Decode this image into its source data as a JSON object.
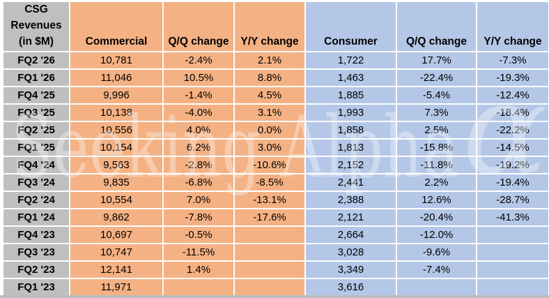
{
  "colors": {
    "label_gray": "#BFBFBF",
    "commercial_orange": "#F4B183",
    "consumer_blue": "#B4C7E7",
    "gridline_white": "#FFFFFF",
    "text_black": "#000000",
    "watermark_white": "#FFFFFF"
  },
  "watermark": {
    "text": "Seeking Alpha",
    "alpha_glyph": "α"
  },
  "table": {
    "corner": {
      "line1": "CSG",
      "line2": "Revenues",
      "line3": "(in $M)"
    },
    "headers": {
      "commercial": "Commercial",
      "commercial_qq": "Q/Q change",
      "commercial_yy": "Y/Y change",
      "consumer": "Consumer",
      "consumer_qq": "Q/Q change",
      "consumer_yy": "Y/Y change"
    },
    "rows": [
      {
        "label": "FQ2 '26",
        "cells": [
          "10,781",
          "-2.4%",
          "2.1%",
          "1,722",
          "17.7%",
          "-7.3%"
        ]
      },
      {
        "label": "FQ1 '26",
        "cells": [
          "11,046",
          "10.5%",
          "8.8%",
          "1,463",
          "-22.4%",
          "-19.3%"
        ]
      },
      {
        "label": "FQ4 '25",
        "cells": [
          "9,996",
          "-1.4%",
          "4.5%",
          "1,885",
          "-5.4%",
          "-12.4%"
        ]
      },
      {
        "label": "FQ3 '25",
        "cells": [
          "10,138",
          "-4.0%",
          "3.1%",
          "1,993",
          "7.3%",
          "-18.4%"
        ]
      },
      {
        "label": "FQ2 '25",
        "cells": [
          "10,556",
          "4.0%",
          "0.0%",
          "1,858",
          "2.5%",
          "-22.2%"
        ]
      },
      {
        "label": "FQ1 '25",
        "cells": [
          "10,154",
          "6.2%",
          "3.0%",
          "1,813",
          "-15.8%",
          "-14.5%"
        ]
      },
      {
        "label": "FQ4 '24",
        "cells": [
          "9,563",
          "-2.8%",
          "-10.6%",
          "2,152",
          "-11.8%",
          "-19.2%"
        ]
      },
      {
        "label": "FQ3 '24",
        "cells": [
          "9,835",
          "-6.8%",
          "-8.5%",
          "2,441",
          "2.2%",
          "-19.4%"
        ]
      },
      {
        "label": "FQ2 '24",
        "cells": [
          "10,554",
          "7.0%",
          "-13.1%",
          "2,388",
          "12.6%",
          "-28.7%"
        ]
      },
      {
        "label": "FQ1 '24",
        "cells": [
          "9,862",
          "-7.8%",
          "-17.6%",
          "2,121",
          "-20.4%",
          "-41.3%"
        ]
      },
      {
        "label": "FQ4 '23",
        "cells": [
          "10,697",
          "-0.5%",
          "",
          "2,664",
          "-12.0%",
          ""
        ]
      },
      {
        "label": "FQ3 '23",
        "cells": [
          "10,747",
          "-11.5%",
          "",
          "3,028",
          "-9.6%",
          ""
        ]
      },
      {
        "label": "FQ2 '23",
        "cells": [
          "12,141",
          "1.4%",
          "",
          "3,349",
          "-7.4%",
          ""
        ]
      },
      {
        "label": "FQ1 '23",
        "cells": [
          "11,971",
          "",
          "",
          "3,616",
          "",
          ""
        ]
      }
    ]
  }
}
